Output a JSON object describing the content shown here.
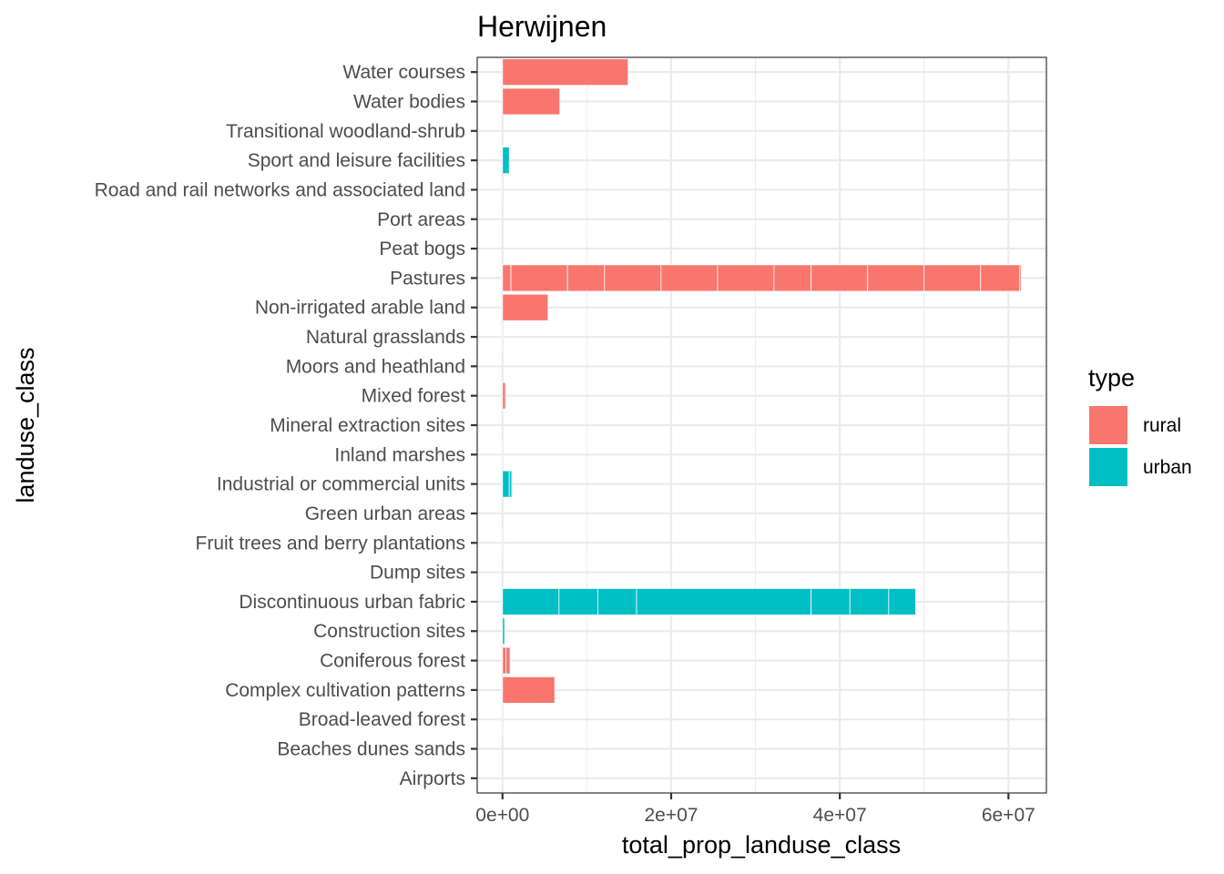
{
  "chart_data": {
    "type": "bar",
    "orientation": "horizontal",
    "stacked": true,
    "title": "Herwijnen",
    "xlabel": "total_prop_landuse_class",
    "ylabel": "landuse_class",
    "xlim": [
      -3000000,
      64500000
    ],
    "x_ticks": [
      0,
      20000000,
      40000000,
      60000000
    ],
    "x_tick_labels": [
      "0e+00",
      "2e+07",
      "4e+07",
      "6e+07"
    ],
    "grid": true,
    "legend": {
      "title": "type",
      "position": "right",
      "items": [
        {
          "label": "rural",
          "color": "#F8766D"
        },
        {
          "label": "urban",
          "color": "#00BFC4"
        }
      ]
    },
    "categories": [
      "Airports",
      "Beaches dunes sands",
      "Broad-leaved forest",
      "Complex cultivation patterns",
      "Coniferous forest",
      "Construction sites",
      "Discontinuous urban fabric",
      "Dump sites",
      "Fruit trees and berry plantations",
      "Green urban areas",
      "Industrial or commercial units",
      "Inland marshes",
      "Mineral extraction sites",
      "Mixed forest",
      "Moors and heathland",
      "Natural grasslands",
      "Non-irrigated arable land",
      "Pastures",
      "Peat bogs",
      "Port areas",
      "Road and rail networks and associated land",
      "Sport and leisure facilities",
      "Transitional woodland-shrub",
      "Water bodies",
      "Water courses"
    ],
    "bars": [
      {
        "category": "Airports",
        "type": "rural",
        "segments": []
      },
      {
        "category": "Beaches dunes sands",
        "type": "rural",
        "segments": []
      },
      {
        "category": "Broad-leaved forest",
        "type": "rural",
        "segments": [
          100000
        ]
      },
      {
        "category": "Complex cultivation patterns",
        "type": "rural",
        "segments": [
          6200000
        ]
      },
      {
        "category": "Coniferous forest",
        "type": "rural",
        "segments": [
          400000,
          500000
        ]
      },
      {
        "category": "Construction sites",
        "type": "urban",
        "segments": [
          250000
        ]
      },
      {
        "category": "Discontinuous urban fabric",
        "type": "urban",
        "segments": [
          6700000,
          4600000,
          4600000,
          20700000,
          4600000,
          4600000,
          3200000
        ]
      },
      {
        "category": "Dump sites",
        "type": "urban",
        "segments": []
      },
      {
        "category": "Fruit trees and berry plantations",
        "type": "rural",
        "segments": [
          100000
        ]
      },
      {
        "category": "Green urban areas",
        "type": "urban",
        "segments": []
      },
      {
        "category": "Industrial or commercial units",
        "type": "urban",
        "segments": [
          800000,
          300000
        ]
      },
      {
        "category": "Inland marshes",
        "type": "rural",
        "segments": [
          100000
        ]
      },
      {
        "category": "Mineral extraction sites",
        "type": "urban",
        "segments": []
      },
      {
        "category": "Mixed forest",
        "type": "rural",
        "segments": [
          350000
        ]
      },
      {
        "category": "Moors and heathland",
        "type": "rural",
        "segments": []
      },
      {
        "category": "Natural grasslands",
        "type": "rural",
        "segments": [
          100000
        ]
      },
      {
        "category": "Non-irrigated arable land",
        "type": "rural",
        "segments": [
          5400000
        ]
      },
      {
        "category": "Pastures",
        "type": "rural",
        "segments": [
          1000000,
          6700000,
          4400000,
          6700000,
          6700000,
          6700000,
          4400000,
          6700000,
          6700000,
          6700000,
          4600000,
          200000
        ]
      },
      {
        "category": "Peat bogs",
        "type": "rural",
        "segments": []
      },
      {
        "category": "Port areas",
        "type": "urban",
        "segments": []
      },
      {
        "category": "Road and rail networks and associated land",
        "type": "urban",
        "segments": [
          100000
        ]
      },
      {
        "category": "Sport and leisure facilities",
        "type": "urban",
        "segments": [
          800000
        ]
      },
      {
        "category": "Transitional woodland-shrub",
        "type": "rural",
        "segments": []
      },
      {
        "category": "Water bodies",
        "type": "rural",
        "segments": [
          6800000
        ]
      },
      {
        "category": "Water courses",
        "type": "rural",
        "segments": [
          14900000
        ]
      }
    ]
  }
}
